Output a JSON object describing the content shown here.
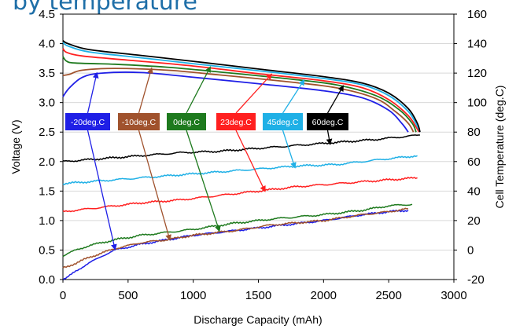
{
  "chart_data": {
    "type": "line",
    "title": "by temperature",
    "xlabel": "Discharge Capacity (mAh)",
    "ylabel": "Voltage (V)",
    "y2label": "Cell Temperature (deg.C)",
    "xlim": [
      0,
      3000
    ],
    "ylim": [
      0,
      4.5
    ],
    "y2lim": [
      -20,
      160
    ],
    "xticks": [
      "0",
      "500",
      "1000",
      "1500",
      "2000",
      "2500",
      "3000"
    ],
    "yticks": [
      "0.0",
      "0.5",
      "1.0",
      "1.5",
      "2.0",
      "2.5",
      "3.0",
      "3.5",
      "4.0",
      "4.5"
    ],
    "y2ticks": [
      "-20",
      "0",
      "20",
      "40",
      "60",
      "80",
      "100",
      "120",
      "140",
      "160"
    ],
    "grid": "horizontal",
    "legend_placement": "inside, middle-left",
    "series": [
      {
        "name": "-20deg.C",
        "color": "#1f1fe6",
        "voltage": [
          [
            0,
            3.1
          ],
          [
            50,
            3.25
          ],
          [
            150,
            3.43
          ],
          [
            300,
            3.5
          ],
          [
            600,
            3.51
          ],
          [
            1000,
            3.43
          ],
          [
            1500,
            3.32
          ],
          [
            2000,
            3.2
          ],
          [
            2300,
            3.08
          ],
          [
            2500,
            2.87
          ],
          [
            2600,
            2.65
          ],
          [
            2650,
            2.5
          ]
        ],
        "temperature": [
          [
            0,
            -20
          ],
          [
            30,
            -19
          ],
          [
            100,
            -14
          ],
          [
            200,
            -9
          ],
          [
            300,
            -4
          ],
          [
            400,
            0
          ],
          [
            600,
            4
          ],
          [
            800,
            7
          ],
          [
            1000,
            10
          ],
          [
            1300,
            13
          ],
          [
            1600,
            16
          ],
          [
            2000,
            20
          ],
          [
            2300,
            24
          ],
          [
            2500,
            26
          ],
          [
            2650,
            27
          ]
        ]
      },
      {
        "name": "-10deg.C",
        "color": "#a0522d",
        "voltage": [
          [
            0,
            3.46
          ],
          [
            50,
            3.48
          ],
          [
            150,
            3.55
          ],
          [
            400,
            3.58
          ],
          [
            800,
            3.55
          ],
          [
            1200,
            3.47
          ],
          [
            1700,
            3.36
          ],
          [
            2100,
            3.25
          ],
          [
            2400,
            3.07
          ],
          [
            2550,
            2.85
          ],
          [
            2650,
            2.65
          ],
          [
            2690,
            2.5
          ]
        ],
        "temperature": [
          [
            0,
            -12
          ],
          [
            100,
            -9
          ],
          [
            200,
            -5
          ],
          [
            400,
            1
          ],
          [
            600,
            5
          ],
          [
            800,
            7
          ],
          [
            1000,
            10
          ],
          [
            1300,
            13
          ],
          [
            1600,
            17
          ],
          [
            2000,
            20
          ],
          [
            2300,
            24
          ],
          [
            2500,
            26
          ],
          [
            2650,
            28
          ]
        ]
      },
      {
        "name": "0deg.C",
        "color": "#1e7a1e",
        "voltage": [
          [
            0,
            3.78
          ],
          [
            30,
            3.7
          ],
          [
            100,
            3.67
          ],
          [
            400,
            3.65
          ],
          [
            800,
            3.6
          ],
          [
            1200,
            3.52
          ],
          [
            1700,
            3.41
          ],
          [
            2100,
            3.3
          ],
          [
            2400,
            3.12
          ],
          [
            2580,
            2.88
          ],
          [
            2680,
            2.65
          ],
          [
            2710,
            2.5
          ]
        ],
        "temperature": [
          [
            0,
            -4
          ],
          [
            100,
            0
          ],
          [
            200,
            3
          ],
          [
            400,
            7
          ],
          [
            600,
            10
          ],
          [
            800,
            12
          ],
          [
            1000,
            14
          ],
          [
            1300,
            18
          ],
          [
            1600,
            21
          ],
          [
            2000,
            24
          ],
          [
            2300,
            27
          ],
          [
            2500,
            30
          ],
          [
            2680,
            31
          ]
        ]
      },
      {
        "name": "23deg.C",
        "color": "#ff2020",
        "voltage": [
          [
            0,
            3.92
          ],
          [
            30,
            3.85
          ],
          [
            150,
            3.79
          ],
          [
            500,
            3.72
          ],
          [
            1000,
            3.62
          ],
          [
            1500,
            3.49
          ],
          [
            2000,
            3.37
          ],
          [
            2300,
            3.25
          ],
          [
            2500,
            3.05
          ],
          [
            2650,
            2.78
          ],
          [
            2720,
            2.55
          ],
          [
            2730,
            2.5
          ]
        ],
        "temperature": [
          [
            0,
            26
          ],
          [
            300,
            29
          ],
          [
            600,
            32
          ],
          [
            900,
            34
          ],
          [
            1200,
            37
          ],
          [
            1500,
            40
          ],
          [
            1800,
            43
          ],
          [
            2100,
            45
          ],
          [
            2400,
            47
          ],
          [
            2720,
            49
          ]
        ]
      },
      {
        "name": "45deg.C",
        "color": "#1fb0e6",
        "voltage": [
          [
            0,
            4.02
          ],
          [
            40,
            3.96
          ],
          [
            200,
            3.86
          ],
          [
            600,
            3.76
          ],
          [
            1000,
            3.66
          ],
          [
            1500,
            3.54
          ],
          [
            2000,
            3.41
          ],
          [
            2300,
            3.3
          ],
          [
            2500,
            3.12
          ],
          [
            2650,
            2.85
          ],
          [
            2720,
            2.6
          ],
          [
            2740,
            2.5
          ]
        ],
        "temperature": [
          [
            0,
            45
          ],
          [
            300,
            47
          ],
          [
            600,
            49
          ],
          [
            900,
            51
          ],
          [
            1200,
            53
          ],
          [
            1500,
            55
          ],
          [
            1800,
            57
          ],
          [
            2100,
            58
          ],
          [
            2400,
            61
          ],
          [
            2720,
            64
          ]
        ]
      },
      {
        "name": "60deg.C",
        "color": "#000000",
        "voltage": [
          [
            0,
            4.05
          ],
          [
            40,
            4.0
          ],
          [
            200,
            3.9
          ],
          [
            600,
            3.8
          ],
          [
            1000,
            3.7
          ],
          [
            1500,
            3.57
          ],
          [
            2000,
            3.44
          ],
          [
            2300,
            3.33
          ],
          [
            2500,
            3.16
          ],
          [
            2650,
            2.9
          ],
          [
            2720,
            2.65
          ],
          [
            2740,
            2.5
          ]
        ],
        "temperature": [
          [
            0,
            60
          ],
          [
            300,
            62
          ],
          [
            600,
            64
          ],
          [
            900,
            66
          ],
          [
            1200,
            67
          ],
          [
            1500,
            69
          ],
          [
            1800,
            71
          ],
          [
            2100,
            73
          ],
          [
            2400,
            75
          ],
          [
            2740,
            78
          ]
        ]
      }
    ]
  }
}
